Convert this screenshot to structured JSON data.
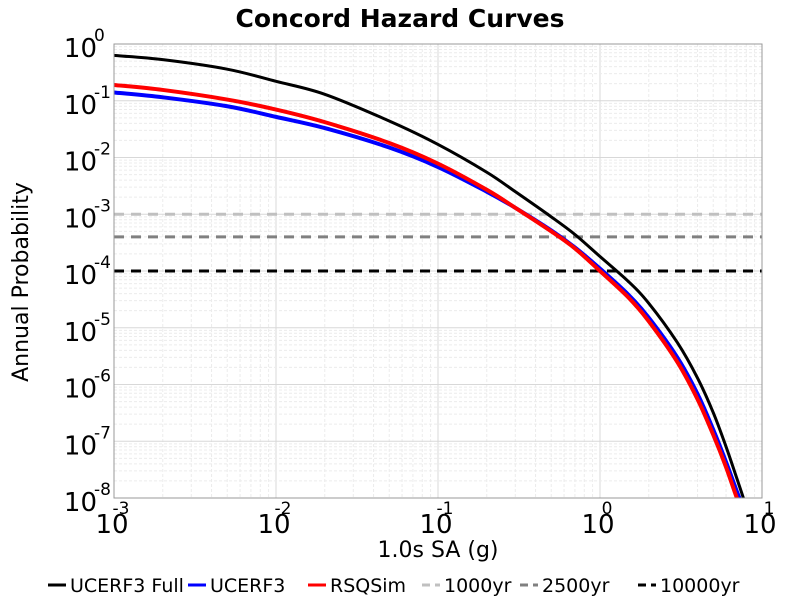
{
  "chart_data": {
    "type": "line",
    "title": "Concord Hazard Curves",
    "xlabel": "1.0s SA (g)",
    "ylabel": "Annual Probability",
    "xscale": "log",
    "yscale": "log",
    "xlim": [
      0.001,
      10
    ],
    "ylim": [
      1e-08,
      1
    ],
    "grid": true,
    "legend_position": "bottom",
    "x_ticks": [
      {
        "base": "10",
        "exp": "-3",
        "value": 0.001
      },
      {
        "base": "10",
        "exp": "-2",
        "value": 0.01
      },
      {
        "base": "10",
        "exp": "-1",
        "value": 0.1
      },
      {
        "base": "10",
        "exp": "0",
        "value": 1
      },
      {
        "base": "10",
        "exp": "1",
        "value": 10
      }
    ],
    "y_ticks": [
      {
        "base": "10",
        "exp": "0",
        "value": 1
      },
      {
        "base": "10",
        "exp": "-1",
        "value": 0.1
      },
      {
        "base": "10",
        "exp": "-2",
        "value": 0.01
      },
      {
        "base": "10",
        "exp": "-3",
        "value": 0.001
      },
      {
        "base": "10",
        "exp": "-4",
        "value": 0.0001
      },
      {
        "base": "10",
        "exp": "-5",
        "value": 1e-05
      },
      {
        "base": "10",
        "exp": "-6",
        "value": 1e-06
      },
      {
        "base": "10",
        "exp": "-7",
        "value": 1e-07
      },
      {
        "base": "10",
        "exp": "-8",
        "value": 1e-08
      }
    ],
    "series": [
      {
        "name": "UCERF3 Full",
        "color": "#000000",
        "style": "solid",
        "x": [
          0.001,
          0.002,
          0.005,
          0.01,
          0.02,
          0.05,
          0.1,
          0.2,
          0.3,
          0.5,
          0.7,
          1.0,
          1.5,
          2.0,
          3.0,
          4.0,
          5.0,
          6.0,
          7.0,
          8.0
        ],
        "y": [
          0.63,
          0.53,
          0.36,
          0.22,
          0.13,
          0.044,
          0.017,
          0.0055,
          0.0025,
          0.0009,
          0.00044,
          0.00018,
          6.5e-05,
          2.7e-05,
          5.5e-06,
          1.3e-06,
          3.2e-07,
          8e-08,
          2.2e-08,
          7e-09
        ]
      },
      {
        "name": "UCERF3",
        "color": "#0000ff",
        "style": "solid",
        "x": [
          0.001,
          0.002,
          0.005,
          0.01,
          0.02,
          0.05,
          0.1,
          0.2,
          0.3,
          0.5,
          0.7,
          1.0,
          1.5,
          2.0,
          3.0,
          4.0,
          5.0,
          6.0,
          7.0,
          8.0
        ],
        "y": [
          0.14,
          0.115,
          0.08,
          0.052,
          0.033,
          0.015,
          0.0068,
          0.0025,
          0.0013,
          0.00052,
          0.00026,
          0.00011,
          3.8e-05,
          1.5e-05,
          3e-06,
          6.8e-07,
          1.6e-07,
          4.3e-08,
          1.3e-08,
          5e-09
        ]
      },
      {
        "name": "RSQSim",
        "color": "#ff0000",
        "style": "solid",
        "x": [
          0.001,
          0.002,
          0.005,
          0.01,
          0.02,
          0.05,
          0.1,
          0.2,
          0.3,
          0.5,
          0.7,
          1.0,
          1.5,
          2.0,
          3.0,
          4.0,
          5.0,
          6.0,
          7.0,
          8.0
        ],
        "y": [
          0.19,
          0.155,
          0.105,
          0.07,
          0.042,
          0.018,
          0.0078,
          0.0027,
          0.0013,
          0.0005,
          0.00025,
          0.0001,
          3.4e-05,
          1.3e-05,
          2.5e-06,
          5.5e-07,
          1.3e-07,
          3.5e-08,
          1e-08,
          4e-09
        ]
      },
      {
        "name": "1000yr",
        "color": "#c0c0c0",
        "style": "dashed",
        "x": [
          0.001,
          10
        ],
        "y": [
          0.001,
          0.001
        ]
      },
      {
        "name": "2500yr",
        "color": "#808080",
        "style": "dashed",
        "x": [
          0.001,
          10
        ],
        "y": [
          0.0004,
          0.0004
        ]
      },
      {
        "name": "10000yr",
        "color": "#000000",
        "style": "dashed",
        "x": [
          0.001,
          10
        ],
        "y": [
          0.0001,
          0.0001
        ]
      }
    ]
  }
}
